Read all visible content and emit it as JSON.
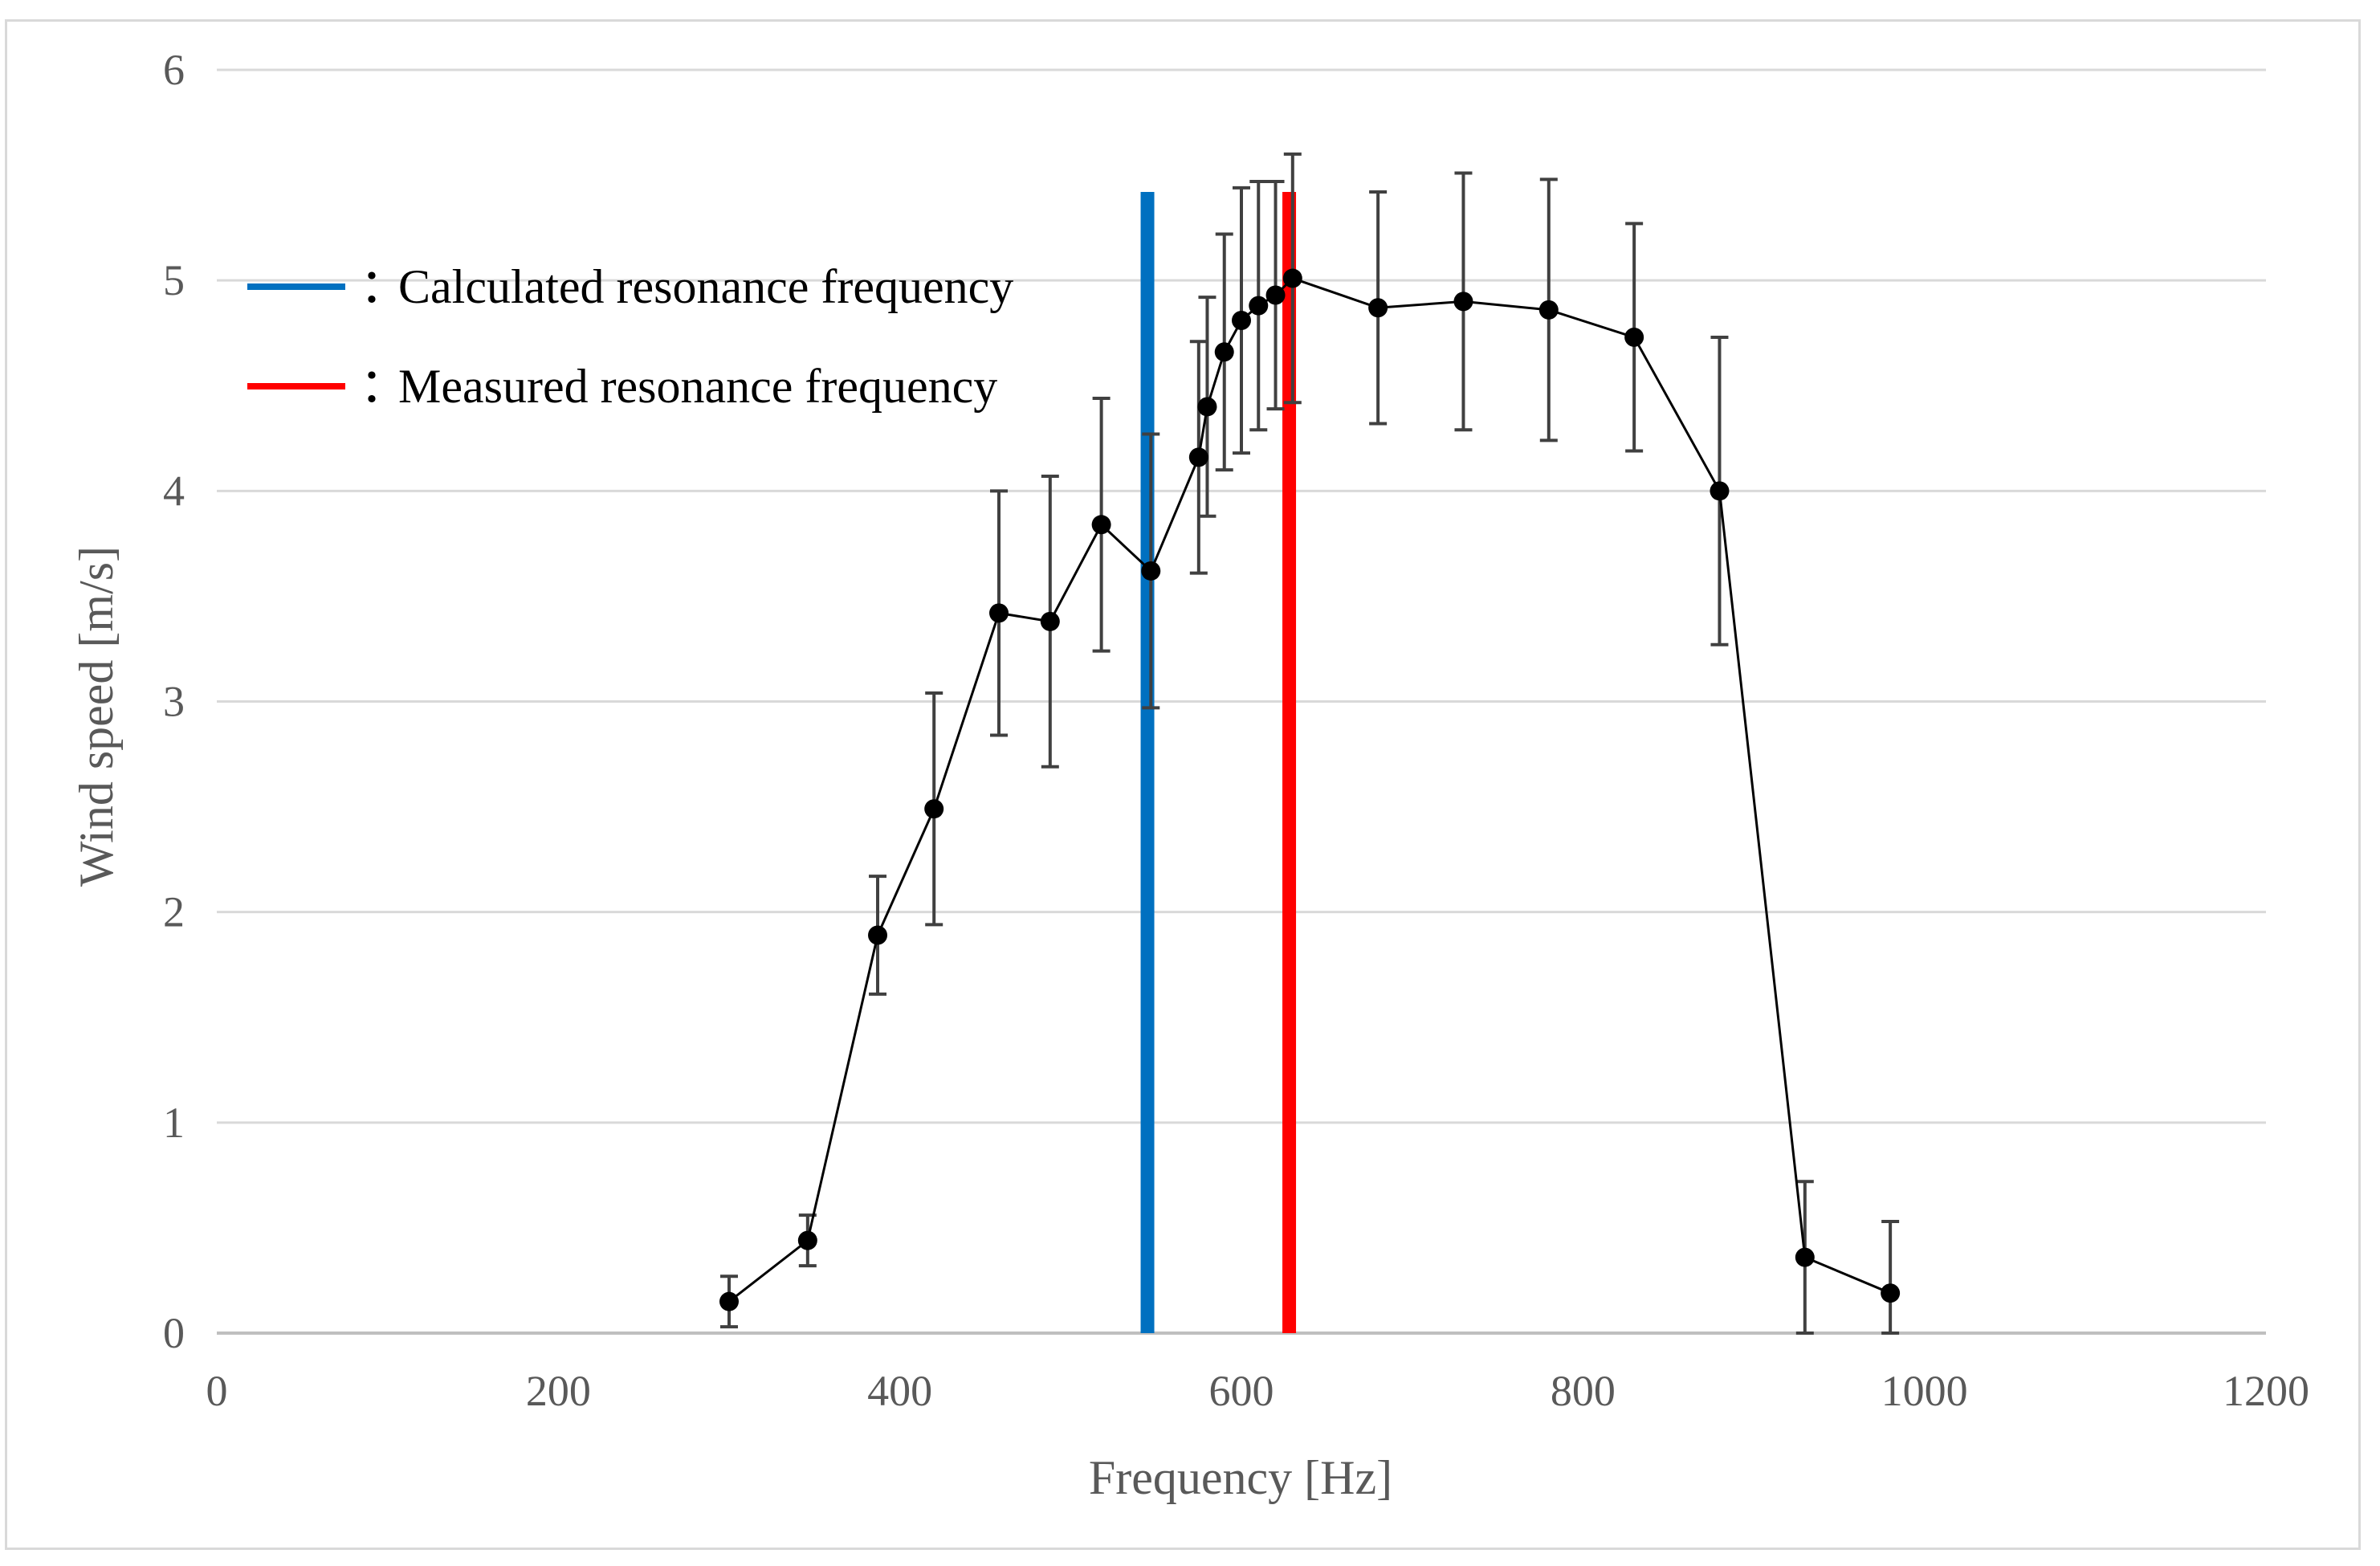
{
  "chart_data": {
    "type": "scatter",
    "title": "",
    "xlabel": "Frequency [Hz]",
    "ylabel": "Wind speed [m/s]",
    "xlim": [
      0,
      1200
    ],
    "ylim": [
      0,
      6
    ],
    "grid": true,
    "x_ticks": [
      "0",
      "200",
      "400",
      "600",
      "800",
      "1000",
      "1200"
    ],
    "y_ticks": [
      "0",
      "1",
      "2",
      "3",
      "4",
      "5",
      "6"
    ],
    "series": [
      {
        "name": "Wind speed",
        "color": "#000000",
        "mode": "lines+markers",
        "x": [
          300,
          346,
          387,
          420,
          458,
          488,
          518,
          547,
          575,
          580,
          590,
          600,
          610,
          620,
          630,
          680,
          730,
          780,
          830,
          880,
          930,
          980
        ],
        "y": [
          0.15,
          0.44,
          1.89,
          2.49,
          3.42,
          3.38,
          3.84,
          3.62,
          4.16,
          4.4,
          4.66,
          4.81,
          4.88,
          4.93,
          5.01,
          4.87,
          4.9,
          4.86,
          4.73,
          4.0,
          0.36,
          0.19
        ],
        "error": [
          0.12,
          0.12,
          0.28,
          0.55,
          0.58,
          0.69,
          0.6,
          0.65,
          0.55,
          0.52,
          0.56,
          0.63,
          0.59,
          0.54,
          0.59,
          0.55,
          0.61,
          0.62,
          0.54,
          0.73,
          0.36,
          0.34
        ]
      }
    ],
    "reference_lines": [
      {
        "name": "Calculated resonance frequency",
        "x": 545,
        "y_top": 5.42,
        "color": "#0070c0"
      },
      {
        "name": "Measured resonance frequency",
        "x": 628,
        "y_top": 5.42,
        "color": "#ff0000"
      }
    ],
    "legend": {
      "position": "top-left",
      "separator": "：",
      "entries": [
        {
          "label": "Calculated resonance frequency",
          "color": "#0070c0"
        },
        {
          "label": "Measured resonance frequency",
          "color": "#ff0000"
        }
      ]
    }
  }
}
